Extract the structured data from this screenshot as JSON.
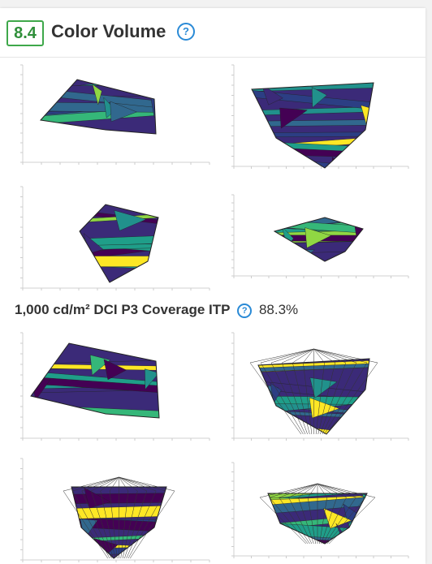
{
  "header": {
    "score": "8.4",
    "title": "Color Volume"
  },
  "metric": {
    "label": "1,000 cd/m² DCI P3 Coverage ITP",
    "value": "88.3%"
  }
}
